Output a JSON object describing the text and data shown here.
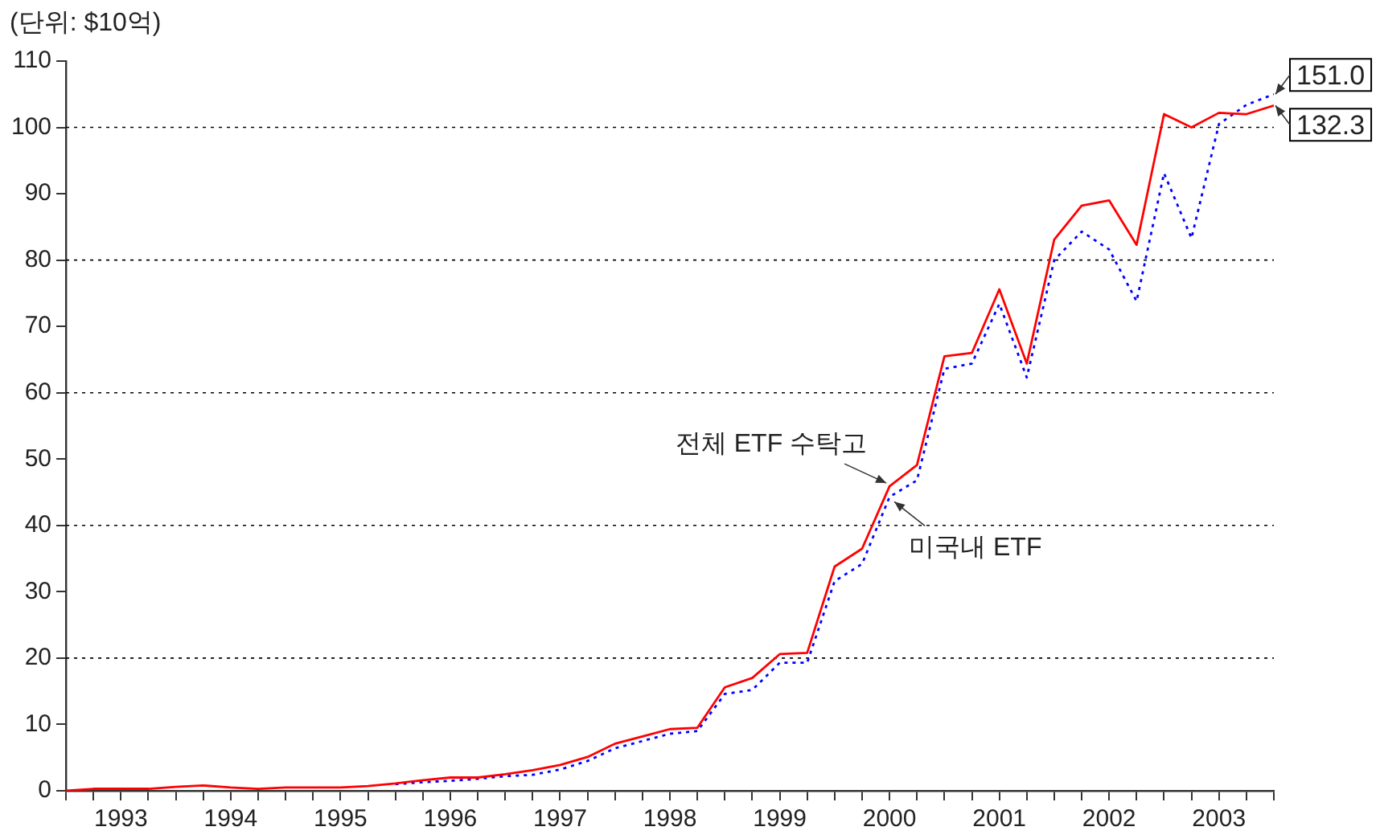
{
  "chart_data": {
    "type": "line",
    "ylabel": "(단위: $10억)",
    "x": [
      1993,
      1993.25,
      1993.5,
      1993.75,
      1994,
      1994.25,
      1994.5,
      1994.75,
      1995,
      1995.25,
      1995.5,
      1995.75,
      1996,
      1996.25,
      1996.5,
      1996.75,
      1997,
      1997.25,
      1997.5,
      1997.75,
      1998,
      1998.25,
      1998.5,
      1998.75,
      1999,
      1999.25,
      1999.5,
      1999.75,
      2000,
      2000.25,
      2000.5,
      2000.75,
      2001,
      2001.25,
      2001.5,
      2001.75,
      2002,
      2002.25,
      2002.5,
      2002.75,
      2003,
      2003.25,
      2003.5,
      2003.75,
      2004
    ],
    "series": [
      {
        "name": "전체 ETF 수탁고",
        "color": "#ff0000",
        "line_style": "solid",
        "values": [
          0,
          0.3,
          0.3,
          0.3,
          0.6,
          0.8,
          0.5,
          0.3,
          0.5,
          0.5,
          0.5,
          0.7,
          1.1,
          1.6,
          2.0,
          2.0,
          2.5,
          3.1,
          3.9,
          5.1,
          7.1,
          8.2,
          9.3,
          9.5,
          15.6,
          17.0,
          20.6,
          20.8,
          33.8,
          36.5,
          45.9,
          49.1,
          65.5,
          66.0,
          75.6,
          64.4,
          83.1,
          88.2,
          89.0,
          82.3,
          102.0,
          100.0,
          102.2,
          102.0,
          103.3
        ]
      },
      {
        "name": "미국내 ETF",
        "color": "#0000ff",
        "line_style": "dotted",
        "values": [
          null,
          null,
          null,
          null,
          null,
          null,
          null,
          null,
          null,
          null,
          null,
          null,
          1.0,
          1.3,
          1.5,
          1.8,
          2.2,
          2.4,
          3.2,
          4.5,
          6.4,
          7.5,
          8.6,
          9.0,
          14.6,
          15.2,
          19.3,
          19.3,
          31.6,
          34.2,
          44.3,
          46.8,
          63.6,
          64.4,
          73.4,
          62.3,
          80.0,
          84.3,
          81.6,
          73.8,
          93.1,
          83.3,
          100.5,
          103.4,
          105.0
        ]
      }
    ],
    "xlim": [
      1993,
      2004
    ],
    "xticks": [
      {
        "value": 1993,
        "label": null
      },
      {
        "value": 1993.25,
        "label": null
      },
      {
        "value": 1993.5,
        "label": "1993"
      },
      {
        "value": 1993.75,
        "label": null
      },
      {
        "value": 1994,
        "label": null
      },
      {
        "value": 1994.25,
        "label": null
      },
      {
        "value": 1994.5,
        "label": "1994"
      },
      {
        "value": 1994.75,
        "label": null
      },
      {
        "value": 1995,
        "label": null
      },
      {
        "value": 1995.25,
        "label": null
      },
      {
        "value": 1995.5,
        "label": "1995"
      },
      {
        "value": 1995.75,
        "label": null
      },
      {
        "value": 1996,
        "label": null
      },
      {
        "value": 1996.25,
        "label": null
      },
      {
        "value": 1996.5,
        "label": "1996"
      },
      {
        "value": 1996.75,
        "label": null
      },
      {
        "value": 1997,
        "label": null
      },
      {
        "value": 1997.25,
        "label": null
      },
      {
        "value": 1997.5,
        "label": "1997"
      },
      {
        "value": 1997.75,
        "label": null
      },
      {
        "value": 1998,
        "label": null
      },
      {
        "value": 1998.25,
        "label": null
      },
      {
        "value": 1998.5,
        "label": "1998"
      },
      {
        "value": 1998.75,
        "label": null
      },
      {
        "value": 1999,
        "label": null
      },
      {
        "value": 1999.25,
        "label": null
      },
      {
        "value": 1999.5,
        "label": "1999"
      },
      {
        "value": 1999.75,
        "label": null
      },
      {
        "value": 2000,
        "label": null
      },
      {
        "value": 2000.25,
        "label": null
      },
      {
        "value": 2000.5,
        "label": "2000"
      },
      {
        "value": 2000.75,
        "label": null
      },
      {
        "value": 2001,
        "label": null
      },
      {
        "value": 2001.25,
        "label": null
      },
      {
        "value": 2001.5,
        "label": "2001"
      },
      {
        "value": 2001.75,
        "label": null
      },
      {
        "value": 2002,
        "label": null
      },
      {
        "value": 2002.25,
        "label": null
      },
      {
        "value": 2002.5,
        "label": "2002"
      },
      {
        "value": 2002.75,
        "label": null
      },
      {
        "value": 2003,
        "label": null
      },
      {
        "value": 2003.25,
        "label": null
      },
      {
        "value": 2003.5,
        "label": "2003"
      },
      {
        "value": 2003.75,
        "label": null
      },
      {
        "value": 2004,
        "label": null
      }
    ],
    "ylim": [
      0,
      110
    ],
    "yticks": [
      0,
      10,
      20,
      30,
      40,
      50,
      60,
      70,
      80,
      90,
      100,
      110
    ],
    "ref_lines": [
      {
        "axis": "y",
        "value": 20,
        "color": "#000000",
        "line_style": "dotted"
      },
      {
        "axis": "y",
        "value": 40,
        "color": "#000000",
        "line_style": "dotted"
      },
      {
        "axis": "y",
        "value": 60,
        "color": "#000000",
        "line_style": "dotted"
      },
      {
        "axis": "y",
        "value": 80,
        "color": "#000000",
        "line_style": "dotted"
      },
      {
        "axis": "y",
        "value": 100,
        "color": "#000000",
        "line_style": "dotted"
      }
    ],
    "annotations": [
      {
        "text": "151.0",
        "x": 2004,
        "y": 105.0
      },
      {
        "text": "132.3",
        "x": 2004,
        "y": 103.3
      }
    ],
    "marker": "none",
    "legend": false,
    "grid": false
  }
}
